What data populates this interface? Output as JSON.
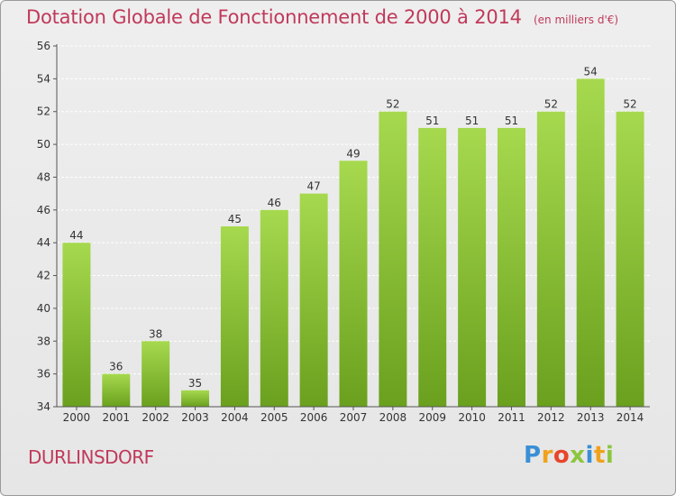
{
  "header": {
    "title": "Dotation Globale de Fonctionnement de 2000 à 2014",
    "unit": "(en milliers d'€)"
  },
  "footer": {
    "town": "DURLINSDORF",
    "logo": "Proxiti"
  },
  "colors": {
    "title": "#c0395a",
    "bar_top": "#a6d94e",
    "bar_bottom": "#6aa01e",
    "grid": "#ffffff",
    "background": "#e8e8e8"
  },
  "chart_data": {
    "type": "bar",
    "title": "Dotation Globale de Fonctionnement de 2000 à 2014",
    "subtitle": "(en milliers d'€)",
    "xlabel": "",
    "ylabel": "",
    "categories": [
      "2000",
      "2001",
      "2002",
      "2003",
      "2004",
      "2005",
      "2006",
      "2007",
      "2008",
      "2009",
      "2010",
      "2011",
      "2012",
      "2013",
      "2014"
    ],
    "values": [
      44,
      36,
      38,
      35,
      45,
      46,
      47,
      49,
      52,
      51,
      51,
      51,
      52,
      54,
      52
    ],
    "ylim": [
      34,
      56
    ],
    "yticks": [
      34,
      36,
      38,
      40,
      42,
      44,
      46,
      48,
      50,
      52,
      54,
      56
    ],
    "grid": true,
    "data_labels": true
  }
}
